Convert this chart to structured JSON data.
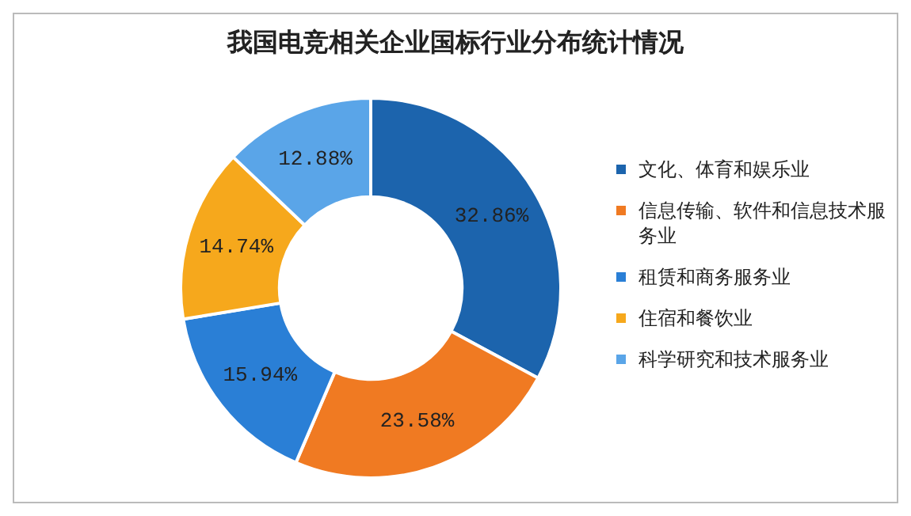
{
  "chart_data": {
    "type": "donut",
    "title": "我国电竞相关企业国标行业分布统计情况",
    "categories": [
      "文化、体育和娱乐业",
      "信息传输、软件和信息技术服务业",
      "租赁和商务服务业",
      "住宿和餐饮业",
      "科学研究和技术服务业"
    ],
    "values": [
      32.86,
      23.58,
      15.94,
      14.74,
      12.88
    ],
    "value_labels": [
      "32.86%",
      "23.58%",
      "15.94%",
      "14.74%",
      "12.88%"
    ],
    "colors": [
      "#1c64ad",
      "#f07a22",
      "#2a7fd6",
      "#f6a81c",
      "#5aa5e8"
    ],
    "legend": "right"
  }
}
